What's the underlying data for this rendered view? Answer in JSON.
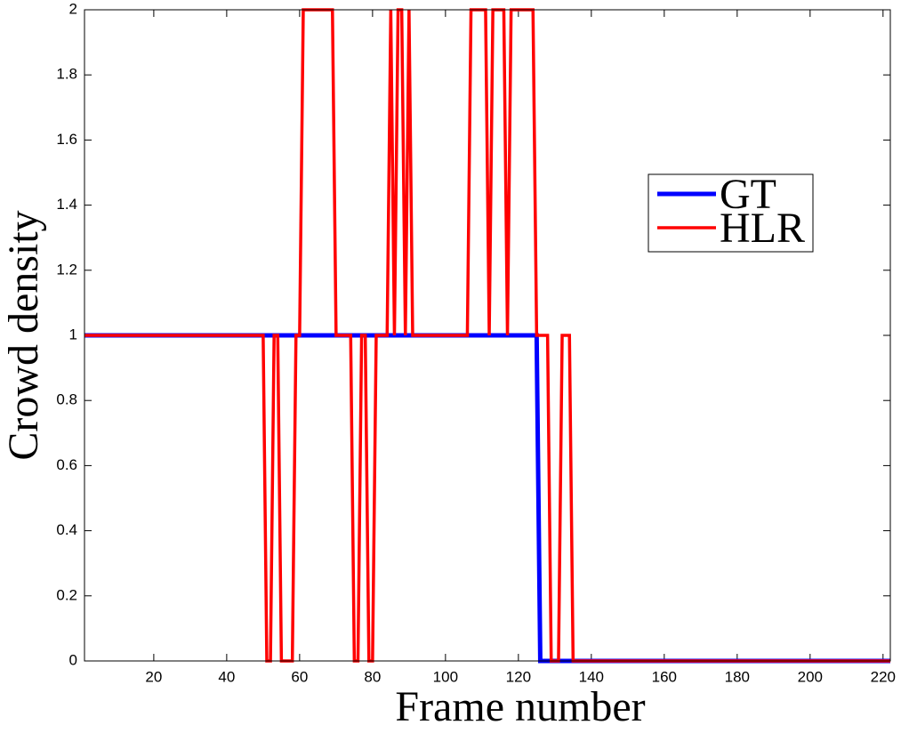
{
  "chart_data": {
    "type": "line",
    "x_label": "Frame number",
    "y_label": "Crowd density",
    "xlim": [
      1,
      222
    ],
    "ylim": [
      0,
      2
    ],
    "xticks": [
      20,
      40,
      60,
      80,
      100,
      120,
      140,
      160,
      180,
      200,
      220
    ],
    "yticks": [
      0,
      0.2,
      0.4,
      0.6,
      0.8,
      1,
      1.2,
      1.4,
      1.6,
      1.8,
      2
    ],
    "legend": "upper right",
    "series": [
      {
        "name": "GT",
        "color": "#0000ff",
        "x": [
          1,
          125,
          126,
          222
        ],
        "values": [
          1,
          1,
          0,
          0
        ]
      },
      {
        "name": "HLR",
        "color": "#ff0000",
        "x": [
          1,
          50,
          51,
          52,
          53,
          54,
          55,
          58,
          59,
          60,
          61,
          69,
          70,
          74,
          75,
          76,
          77,
          78,
          79,
          80,
          81,
          84,
          85,
          86,
          87,
          88,
          89,
          90,
          91,
          106,
          107,
          111,
          112,
          113,
          116,
          117,
          118,
          124,
          125,
          128,
          129,
          131,
          132,
          134,
          135,
          222
        ],
        "values": [
          1,
          1,
          0,
          0,
          1,
          1,
          0,
          0,
          1,
          1,
          2,
          2,
          1,
          1,
          0,
          0,
          1,
          1,
          0,
          0,
          1,
          1,
          2,
          1,
          2,
          2,
          1,
          2,
          1,
          1,
          2,
          2,
          1,
          2,
          2,
          1,
          2,
          2,
          1,
          1,
          0,
          0,
          1,
          1,
          0,
          0
        ]
      }
    ]
  }
}
